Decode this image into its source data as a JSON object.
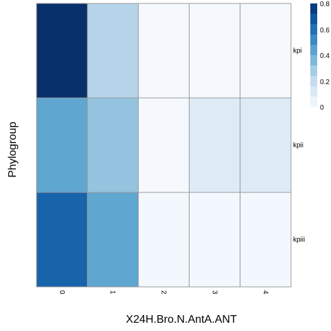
{
  "chart_data": {
    "type": "heatmap",
    "xlabel": "X24H.Bro.N.AntA.ANT",
    "ylabel": "Phylogroup",
    "x_categories": [
      "0",
      "1",
      "2",
      "3",
      "4"
    ],
    "y_categories": [
      "kpi",
      "kpii",
      "kpiii"
    ],
    "values": [
      [
        0.8,
        0.24,
        0.01,
        0.01,
        0.01
      ],
      [
        0.43,
        0.32,
        0.01,
        0.1,
        0.1
      ],
      [
        0.64,
        0.43,
        0.02,
        0.02,
        0.02
      ]
    ],
    "color_scale": {
      "min": 0,
      "max": 0.8,
      "ticks": [
        "0",
        "0.2",
        "0.4",
        "0.6",
        "0.8"
      ],
      "colors": [
        "#F7FBFF",
        "#DEEBF7",
        "#C6DBEF",
        "#9ECAE1",
        "#6BAED6",
        "#4292C6",
        "#2171B5",
        "#08519C",
        "#08306B"
      ]
    },
    "grid": true,
    "legend_position": "top-right"
  }
}
